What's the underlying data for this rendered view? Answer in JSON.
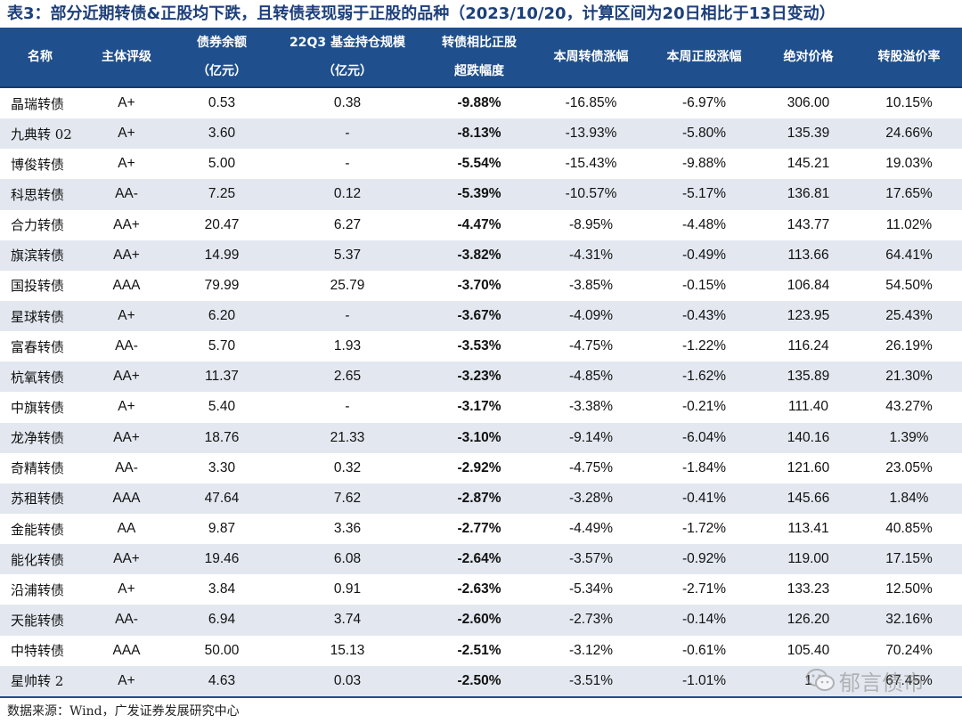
{
  "title": "表3：部分近期转债&正股均下跌，且转债表现弱于正股的品种（2023/10/20，计算区间为20日相比于13日变动）",
  "headers": [
    {
      "line1": "名称",
      "line2": ""
    },
    {
      "line1": "主体评级",
      "line2": ""
    },
    {
      "line1": "债券余额",
      "line2": "（亿元）"
    },
    {
      "line1": "22Q3 基金持仓规模",
      "line2": "（亿元）"
    },
    {
      "line1": "转债相比正股",
      "line2": "超跌幅度"
    },
    {
      "line1": "本周转债涨幅",
      "line2": ""
    },
    {
      "line1": "本周正股涨幅",
      "line2": ""
    },
    {
      "line1": "绝对价格",
      "line2": ""
    },
    {
      "line1": "转股溢价率",
      "line2": ""
    }
  ],
  "rows": [
    [
      "晶瑞转债",
      "A+",
      "0.53",
      "0.38",
      "-9.88%",
      "-16.85%",
      "-6.97%",
      "306.00",
      "10.15%"
    ],
    [
      "九典转 02",
      "A+",
      "3.60",
      "-",
      "-8.13%",
      "-13.93%",
      "-5.80%",
      "135.39",
      "24.66%"
    ],
    [
      "博俊转债",
      "A+",
      "5.00",
      "-",
      "-5.54%",
      "-15.43%",
      "-9.88%",
      "145.21",
      "19.03%"
    ],
    [
      "科思转债",
      "AA-",
      "7.25",
      "0.12",
      "-5.39%",
      "-10.57%",
      "-5.17%",
      "136.81",
      "17.65%"
    ],
    [
      "合力转债",
      "AA+",
      "20.47",
      "6.27",
      "-4.47%",
      "-8.95%",
      "-4.48%",
      "143.77",
      "11.02%"
    ],
    [
      "旗滨转债",
      "AA+",
      "14.99",
      "5.37",
      "-3.82%",
      "-4.31%",
      "-0.49%",
      "113.66",
      "64.41%"
    ],
    [
      "国投转债",
      "AAA",
      "79.99",
      "25.79",
      "-3.70%",
      "-3.85%",
      "-0.15%",
      "106.84",
      "54.50%"
    ],
    [
      "星球转债",
      "A+",
      "6.20",
      "-",
      "-3.67%",
      "-4.09%",
      "-0.43%",
      "123.95",
      "25.43%"
    ],
    [
      "富春转债",
      "AA-",
      "5.70",
      "1.93",
      "-3.53%",
      "-4.75%",
      "-1.22%",
      "116.24",
      "26.19%"
    ],
    [
      "杭氧转债",
      "AA+",
      "11.37",
      "2.65",
      "-3.23%",
      "-4.85%",
      "-1.62%",
      "135.89",
      "21.30%"
    ],
    [
      "中旗转债",
      "A+",
      "5.40",
      "-",
      "-3.17%",
      "-3.38%",
      "-0.21%",
      "111.40",
      "43.27%"
    ],
    [
      "龙净转债",
      "AA+",
      "18.76",
      "21.33",
      "-3.10%",
      "-9.14%",
      "-6.04%",
      "140.16",
      "1.39%"
    ],
    [
      "奇精转债",
      "AA-",
      "3.30",
      "0.32",
      "-2.92%",
      "-4.75%",
      "-1.84%",
      "121.60",
      "23.05%"
    ],
    [
      "苏租转债",
      "AAA",
      "47.64",
      "7.62",
      "-2.87%",
      "-3.28%",
      "-0.41%",
      "145.66",
      "1.84%"
    ],
    [
      "金能转债",
      "AA",
      "9.87",
      "3.36",
      "-2.77%",
      "-4.49%",
      "-1.72%",
      "113.41",
      "40.85%"
    ],
    [
      "能化转债",
      "AA+",
      "19.46",
      "6.08",
      "-2.64%",
      "-3.57%",
      "-0.92%",
      "119.00",
      "17.15%"
    ],
    [
      "沿浦转债",
      "A+",
      "3.84",
      "0.91",
      "-2.63%",
      "-5.34%",
      "-2.71%",
      "133.23",
      "12.50%"
    ],
    [
      "天能转债",
      "AA-",
      "6.94",
      "3.74",
      "-2.60%",
      "-2.73%",
      "-0.14%",
      "126.20",
      "32.16%"
    ],
    [
      "中特转债",
      "AAA",
      "50.00",
      "15.13",
      "-2.51%",
      "-3.12%",
      "-0.61%",
      "105.40",
      "70.24%"
    ],
    [
      "星帅转 2",
      "A+",
      "4.63",
      "0.03",
      "-2.50%",
      "-3.51%",
      "-1.01%",
      "1",
      "67.45%"
    ]
  ],
  "source": "数据来源：Wind，广发证券发展研究中心",
  "watermark": {
    "text": "郁言债市",
    "icon": "wechat-icon"
  },
  "colors": {
    "header_bg": "#1f4f8c",
    "title": "#1d3f7a",
    "stripe": "#e3e8f0"
  }
}
